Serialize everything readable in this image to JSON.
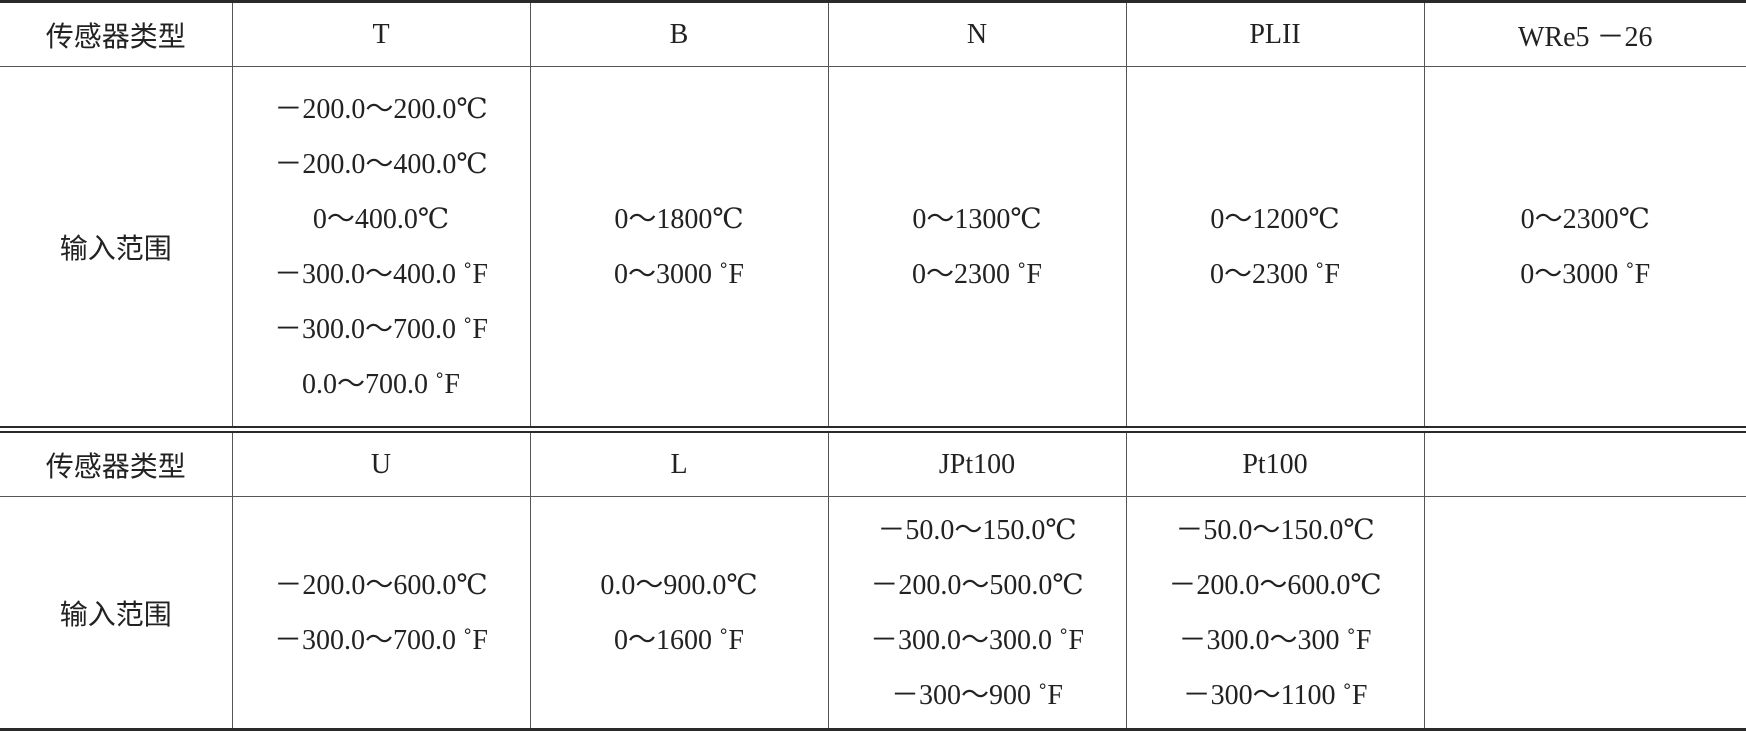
{
  "tables": [
    {
      "header": [
        "传感器类型",
        "T",
        "B",
        "N",
        "PLII",
        "WRe5 －26"
      ],
      "range_label": "输入范围",
      "ranges": [
        [
          "－200.0～200.0℃",
          "－200.0～400.0℃",
          "0～400.0℃",
          "－300.0～400.0 ˚F",
          "－300.0～700.0 ˚F",
          "0.0～700.0 ˚F"
        ],
        [
          "0～1800℃",
          "0～3000 ˚F"
        ],
        [
          "0～1300℃",
          "0～2300 ˚F"
        ],
        [
          "0～1200℃",
          "0～2300 ˚F"
        ],
        [
          "0～2300℃",
          "0～3000 ˚F"
        ]
      ]
    },
    {
      "header": [
        "传感器类型",
        "U",
        "L",
        "JPt100",
        "Pt100"
      ],
      "range_label": "输入范围",
      "ranges": [
        [
          "－200.0～600.0℃",
          "－300.0～700.0 ˚F"
        ],
        [
          "0.0～900.0℃",
          "0～1600 ˚F"
        ],
        [
          "－50.0～150.0℃",
          "－200.0～500.0℃",
          "－300.0～300.0 ˚F",
          "－300～900 ˚F"
        ],
        [
          "－50.0～150.0℃",
          "－200.0～600.0℃",
          "－300.0～300 ˚F",
          "－300～1100 ˚F"
        ]
      ]
    }
  ]
}
